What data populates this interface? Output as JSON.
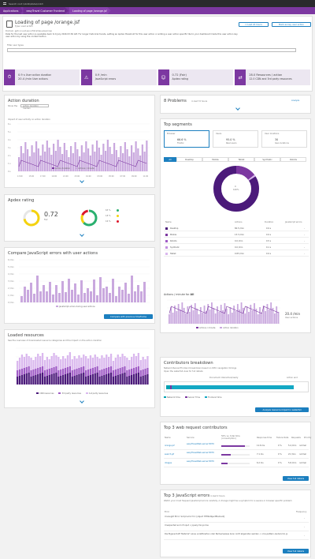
{
  "topbar": {
    "search": "Search root \\xbdb\\xbde\\x1b3"
  },
  "breadcrumbs": [
    "Applications",
    "easyTravel Customer Frontend",
    "Loading of page /orange.jsf"
  ],
  "header": {
    "title": "Loading of page /orange.jsf",
    "type": "Type: Load action",
    "domain": "Domain: gptc-ix.uat.sso.infotrahlea.a/sacrosp",
    "description": "Data for the last user action is available back to 6 July 2016 03:36 AM. For longer historical trends, setting an Apdex threshold for this user action or adding a user action specific tile to your dashboard made this user action key user action by using the context button.",
    "btn_time": "☐ Last 24 hours",
    "btn_key": "Mark as key user action",
    "filter_label": "Filter user types",
    "tiles": [
      {
        "icon": "⏱",
        "v1": "0.9 s",
        "l1": "User action duration",
        "v2": "20.4 /min",
        "l2": "User actions"
      },
      {
        "icon": "⚠",
        "v1": "0.9 /min",
        "l1": "JavaScript errors",
        "v2": "",
        "l2": ""
      },
      {
        "icon": "☺",
        "v1": "0.72 (Fair)",
        "l1": "Apdex rating",
        "v2": "",
        "l2": ""
      },
      {
        "icon": "⇄",
        "v1": "28.0 Resources / action",
        "l1": "",
        "v2": "12.0 CDN and 3rd party resources",
        "l2": ""
      }
    ]
  },
  "action_duration": {
    "title": "Action duration",
    "show_label": "Show the",
    "select": "action duration median",
    "sub": "Impact of user activity on action duration",
    "yticks": [
      "6 s",
      "5 s",
      "4 s",
      "3 s",
      "2 s",
      "1 s",
      "0 s"
    ],
    "xticks": [
      "13:00",
      "15:00",
      "17:00",
      "19:00",
      "21:00",
      "23:00",
      "01:00",
      "03:00",
      "05:00",
      "07:00",
      "09:00",
      "11:00"
    ],
    "legend": [
      "Action duration",
      "Actions / minute"
    ]
  },
  "apdex": {
    "title": "Apdex rating",
    "value": "0.72",
    "label": "Fair",
    "rows": [
      {
        "pct": "63 %",
        "color": "#2ab06f"
      },
      {
        "pct": "18 %",
        "color": "#f5d30f"
      },
      {
        "pct": "16 %",
        "color": "#dc172a"
      }
    ]
  },
  "js_errors": {
    "title": "Compare JavaScript errors with user actions",
    "yticks": [
      "6 /min",
      "5 /min",
      "4 /min",
      "3 /min",
      "2 /min",
      "1 /min",
      "0 /min"
    ],
    "legend": "JavaScript errors during user actions",
    "btn": "Compare with previous timeframe"
  },
  "resources": {
    "title": "Loaded resources",
    "sub": "See the overview of downloaded resource categories and the impact on the action duration",
    "legend": [
      "CDN resources",
      "3rd party resources",
      "1st party resources"
    ]
  },
  "problems": {
    "title": "8 Problems",
    "sub": "in last 72 hours",
    "analyze": "Analyze"
  },
  "segments": {
    "title": "Top segments",
    "cards": [
      {
        "label": "Browser",
        "value": "66.6 %",
        "sub": "Firefox"
      },
      {
        "label": "Users",
        "value": "95.0 %",
        "sub": "Real users"
      },
      {
        "label": "User locations",
        "value": "30",
        "sub": "Geo-locations"
      }
    ],
    "tabs": [
      "All",
      "Desktop",
      "Mobile",
      "Tablet",
      "Synthetic",
      "Robots"
    ],
    "donut_value": "0",
    "donut_label": "100%",
    "table_headers": [
      "Name",
      "Actions",
      "Duration",
      "JavaScript errors"
    ],
    "rows": [
      {
        "name": "Desktop",
        "actions": "80.5 /min",
        "duration": "0.9 s",
        "errors": "-",
        "color": "#4b1a7a"
      },
      {
        "name": "Mobile",
        "actions": "13.3 /min",
        "duration": "0.9 s",
        "errors": "-",
        "color": "#7c38a1"
      },
      {
        "name": "Robots",
        "actions": "0.0 /min",
        "duration": "0.5 s",
        "errors": "-",
        "color": "#a05cc6"
      },
      {
        "name": "Synthetic",
        "actions": "0.0 /min",
        "duration": "0.1 s",
        "errors": "-",
        "color": "#c28fe0"
      },
      {
        "name": "Tablet",
        "actions": "0.83 /min",
        "duration": "0.9 s",
        "errors": "-",
        "color": "#dab8ee"
      }
    ],
    "chart_title": "Actions / minute for",
    "chart_title_bold": "All",
    "side_value": "20.4 /min",
    "side_label": "User actions",
    "legend": [
      "Actions / minute",
      "Action duration"
    ]
  },
  "contrib": {
    "title": "Contributors breakdown",
    "sub": "Network/Server/Frontend breakdown based on W3C navigation timings",
    "sub2": "Open the waterfall view for full details",
    "marker1": "Document interactive/ready",
    "marker2": "Action end",
    "legend": [
      "Network time",
      "Server Time",
      "Frontend time"
    ],
    "btn": "Analyze resource impact in waterfall"
  },
  "web_requests": {
    "title": "Top 3 web request contributors",
    "headers": [
      "Name",
      "Service",
      "50% vs. total time (consumption)",
      "Response time",
      "Failure Rate",
      "Requests",
      "Priority"
    ],
    "rows": [
      {
        "name": "orange.jsf",
        "service": "easyTravelWeb-server:8079",
        "resp": "11.6 ms",
        "fail": "0 %",
        "req": "5.4 /min",
        "prio": "normal"
      },
      {
        "name": "search.jsf",
        "service": "easyTravelWeb-server:8079",
        "resp": "7.1 ms",
        "fail": "0 %",
        "req": "21 /min",
        "prio": "normal"
      },
      {
        "name": "images",
        "service": "easyTravelWeb-server:8079",
        "resp": "6.2 ms",
        "fail": "0 %",
        "req": "5.8 /min",
        "prio": "normal"
      }
    ],
    "btn": "View full details"
  },
  "js_top": {
    "title": "Top 3 JavaScript errors",
    "sub": "in last 2 hours",
    "desc": "Watch your most frequent JavaScript errors carefully. A change might be a symptom for a severe or browser specific problem",
    "headers": [
      "Error",
      "Frequency"
    ],
    "rows": [
      {
        "error": "Uncaught Error: Script error for: [object HTMLObjectElement]",
        "freq": "-"
      },
      {
        "error": "Unexpected end of input < jquery.min.js:line",
        "freq": "-"
      },
      {
        "error": "Die Eigenschaft \"Referral\" eines undefinierten oder Nullverweises kann nicht abgerufen werden < orca.pattern-render.min.js",
        "freq": "-"
      }
    ],
    "btn": "View full details"
  }
}
